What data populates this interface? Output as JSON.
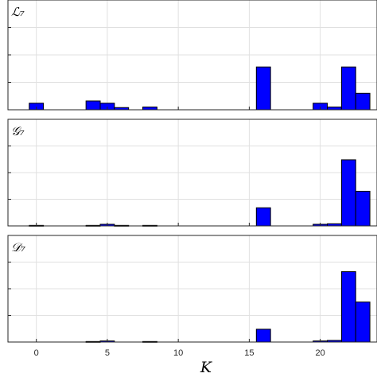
{
  "chart_data": {
    "type": "bar",
    "xlabel": "K",
    "xlim": [
      -2,
      24
    ],
    "xticks": [
      0,
      5,
      10,
      15,
      20
    ],
    "grid": true,
    "bar_color": "#0000ff",
    "bar_edge_color": "#000000",
    "x": [
      0,
      1,
      2,
      3,
      4,
      5,
      6,
      7,
      8,
      9,
      10,
      11,
      12,
      13,
      14,
      15,
      16,
      17,
      18,
      19,
      20,
      21,
      22,
      23
    ],
    "panels": [
      {
        "label": "ℒ₇",
        "ylim": [
          0,
          0.2
        ],
        "values": [
          0.012,
          0,
          0,
          0,
          0.016,
          0.012,
          0.004,
          0,
          0.005,
          0,
          0,
          0,
          0,
          0,
          0,
          0,
          0.078,
          0,
          0,
          0,
          0.012,
          0.005,
          0.078,
          0.03
        ]
      },
      {
        "label": "𝒢₇",
        "ylim": [
          0,
          0.2
        ],
        "values": [
          0.001,
          0,
          0,
          0,
          0.001,
          0.003,
          0.001,
          0,
          0.001,
          0,
          0,
          0,
          0,
          0,
          0,
          0,
          0.034,
          0,
          0,
          0,
          0.003,
          0.004,
          0.124,
          0.065
        ]
      },
      {
        "label": "𝒟₇",
        "ylim": [
          0,
          0.2
        ],
        "values": [
          0,
          0,
          0,
          0,
          0.001,
          0.002,
          0,
          0,
          0.001,
          0,
          0,
          0,
          0,
          0,
          0,
          0,
          0.024,
          0,
          0,
          0,
          0.002,
          0.003,
          0.132,
          0.075
        ]
      }
    ]
  }
}
